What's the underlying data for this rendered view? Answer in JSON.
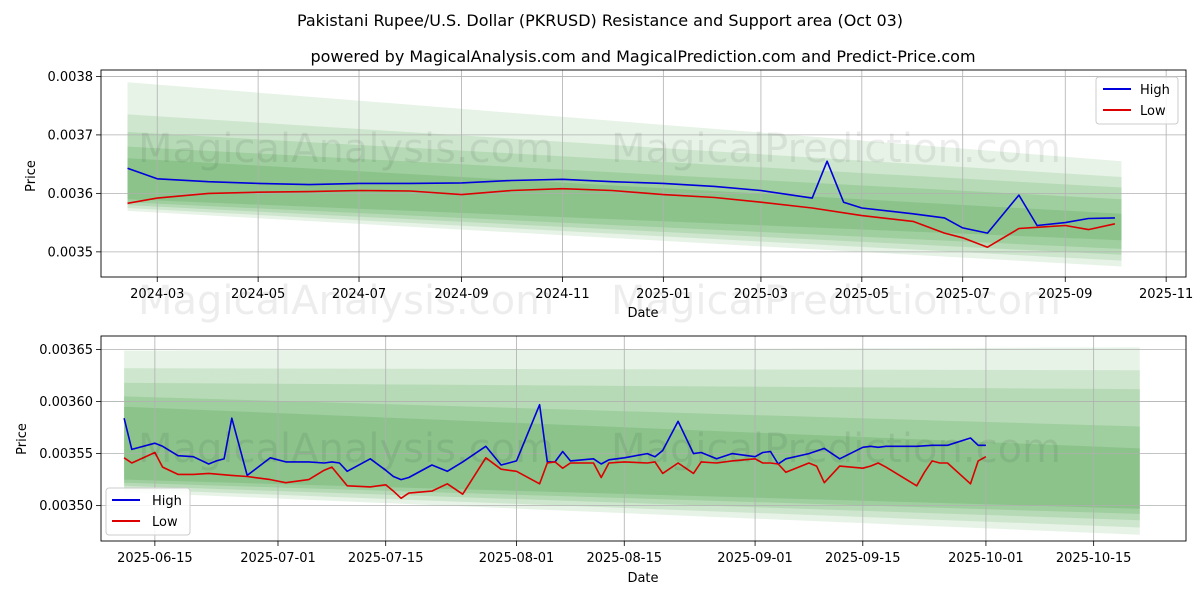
{
  "page": {
    "title": "Pakistani Rupee/U.S. Dollar (PKRUSD) Resistance and Support area (Oct 03)",
    "subtitle": "powered by MagicalAnalysis.com and MagicalPrediction.com and Predict-Price.com",
    "watermark_left": "MagicalAnalysis.com",
    "watermark_right": "MagicalPrediction.com"
  },
  "colors": {
    "high": "#0000dd",
    "low": "#dd0000",
    "band": "#3a9a3a",
    "grid": "#b0b0b0"
  },
  "chart_data": [
    {
      "type": "line",
      "id": "top",
      "xlabel": "Date",
      "ylabel": "Price",
      "xlim": [
        "2024-01-27",
        "2025-11-13"
      ],
      "ylim": [
        0.003457,
        0.003811
      ],
      "xticks": [
        "2024-03-01",
        "2024-05-01",
        "2024-07-01",
        "2024-09-01",
        "2024-11-01",
        "2025-01-01",
        "2025-03-01",
        "2025-05-01",
        "2025-07-01",
        "2025-09-01",
        "2025-11-01"
      ],
      "xtick_labels": [
        "2024-03",
        "2024-05",
        "2024-07",
        "2024-09",
        "2024-11",
        "2025-01",
        "2025-03",
        "2025-05",
        "2025-07",
        "2025-09",
        "2025-11"
      ],
      "yticks": [
        0.0035,
        0.0036,
        0.0037,
        0.0038
      ],
      "ytick_labels": [
        "0.0035",
        "0.0036",
        "0.0037",
        "0.0038"
      ],
      "legend": {
        "position": "top-right",
        "entries": [
          "High",
          "Low"
        ]
      },
      "bands": [
        {
          "x": [
            "2024-02-12",
            "2025-10-05"
          ],
          "upper": [
            0.00379,
            0.003655
          ],
          "lower": [
            0.00357,
            0.003475
          ]
        },
        {
          "x": [
            "2024-02-12",
            "2025-10-05"
          ],
          "upper": [
            0.003735,
            0.003628
          ],
          "lower": [
            0.003575,
            0.003485
          ]
        },
        {
          "x": [
            "2024-02-12",
            "2025-10-05"
          ],
          "upper": [
            0.003705,
            0.00361
          ],
          "lower": [
            0.00358,
            0.003495
          ]
        },
        {
          "x": [
            "2024-02-12",
            "2025-10-05"
          ],
          "upper": [
            0.00368,
            0.00359
          ],
          "lower": [
            0.003585,
            0.003505
          ]
        },
        {
          "x": [
            "2024-02-12",
            "2025-10-05"
          ],
          "upper": [
            0.00366,
            0.003565
          ],
          "lower": [
            0.00359,
            0.00352
          ]
        }
      ],
      "series": [
        {
          "name": "High",
          "x": [
            "2024-02-12",
            "2024-03-01",
            "2024-04-01",
            "2024-05-01",
            "2024-06-01",
            "2024-07-01",
            "2024-08-01",
            "2024-09-01",
            "2024-10-01",
            "2024-11-01",
            "2024-12-01",
            "2025-01-01",
            "2025-02-01",
            "2025-03-01",
            "2025-04-01",
            "2025-04-10",
            "2025-04-20",
            "2025-05-01",
            "2025-06-01",
            "2025-06-20",
            "2025-07-01",
            "2025-07-16",
            "2025-08-04",
            "2025-08-15",
            "2025-09-01",
            "2025-09-15",
            "2025-10-01"
          ],
          "values": [
            0.003643,
            0.003625,
            0.00362,
            0.003617,
            0.003615,
            0.003617,
            0.003617,
            0.003618,
            0.003622,
            0.003624,
            0.00362,
            0.003617,
            0.003612,
            0.003605,
            0.003592,
            0.003655,
            0.003585,
            0.003575,
            0.003565,
            0.003558,
            0.003541,
            0.003532,
            0.003597,
            0.003545,
            0.00355,
            0.003557,
            0.003558
          ]
        },
        {
          "name": "Low",
          "x": [
            "2024-02-12",
            "2024-03-01",
            "2024-04-01",
            "2024-05-01",
            "2024-06-01",
            "2024-07-01",
            "2024-08-01",
            "2024-09-01",
            "2024-10-01",
            "2024-11-01",
            "2024-12-01",
            "2025-01-01",
            "2025-02-01",
            "2025-03-01",
            "2025-04-01",
            "2025-05-01",
            "2025-06-01",
            "2025-06-20",
            "2025-07-01",
            "2025-07-16",
            "2025-08-04",
            "2025-08-15",
            "2025-09-01",
            "2025-09-15",
            "2025-10-01"
          ],
          "values": [
            0.003583,
            0.003592,
            0.0036,
            0.003602,
            0.003603,
            0.003605,
            0.003604,
            0.003598,
            0.003605,
            0.003608,
            0.003605,
            0.003598,
            0.003593,
            0.003585,
            0.003575,
            0.003562,
            0.003552,
            0.003532,
            0.003524,
            0.003508,
            0.00354,
            0.003542,
            0.003545,
            0.003538,
            0.003548
          ]
        }
      ]
    },
    {
      "type": "line",
      "id": "bottom",
      "xlabel": "Date",
      "ylabel": "Price",
      "xlim": [
        "2025-06-08",
        "2025-10-27"
      ],
      "ylim": [
        0.003466,
        0.003663
      ],
      "xticks": [
        "2025-06-15",
        "2025-07-01",
        "2025-07-15",
        "2025-08-01",
        "2025-08-15",
        "2025-09-01",
        "2025-09-15",
        "2025-10-01",
        "2025-10-15"
      ],
      "xtick_labels": [
        "2025-06-15",
        "2025-07-01",
        "2025-07-15",
        "2025-08-01",
        "2025-08-15",
        "2025-09-01",
        "2025-09-15",
        "2025-10-01",
        "2025-10-15"
      ],
      "yticks": [
        0.0035,
        0.00355,
        0.0036,
        0.00365
      ],
      "ytick_labels": [
        "0.00350",
        "0.00355",
        "0.00360",
        "0.00365"
      ],
      "legend": {
        "position": "bottom-left",
        "entries": [
          "High",
          "Low"
        ]
      },
      "bands": [
        {
          "x": [
            "2025-06-11",
            "2025-10-21"
          ],
          "upper": [
            0.003649,
            0.003652
          ],
          "lower": [
            0.003513,
            0.003472
          ]
        },
        {
          "x": [
            "2025-06-11",
            "2025-10-21"
          ],
          "upper": [
            0.003632,
            0.00363
          ],
          "lower": [
            0.003516,
            0.003479
          ]
        },
        {
          "x": [
            "2025-06-11",
            "2025-10-21"
          ],
          "upper": [
            0.003618,
            0.003612
          ],
          "lower": [
            0.003519,
            0.003486
          ]
        },
        {
          "x": [
            "2025-06-11",
            "2025-10-21"
          ],
          "upper": [
            0.003605,
            0.003576
          ],
          "lower": [
            0.003522,
            0.003492
          ]
        },
        {
          "x": [
            "2025-06-11",
            "2025-10-21"
          ],
          "upper": [
            0.003595,
            0.003555
          ],
          "lower": [
            0.003525,
            0.003497
          ]
        }
      ],
      "series": [
        {
          "name": "High",
          "x": [
            "2025-06-11",
            "2025-06-12",
            "2025-06-15",
            "2025-06-16",
            "2025-06-18",
            "2025-06-20",
            "2025-06-22",
            "2025-06-23",
            "2025-06-24",
            "2025-06-25",
            "2025-06-27",
            "2025-06-30",
            "2025-07-02",
            "2025-07-05",
            "2025-07-07",
            "2025-07-08",
            "2025-07-09",
            "2025-07-10",
            "2025-07-13",
            "2025-07-15",
            "2025-07-16",
            "2025-07-17",
            "2025-07-18",
            "2025-07-21",
            "2025-07-23",
            "2025-07-25",
            "2025-07-28",
            "2025-07-30",
            "2025-08-01",
            "2025-08-04",
            "2025-08-05",
            "2025-08-06",
            "2025-08-07",
            "2025-08-08",
            "2025-08-11",
            "2025-08-12",
            "2025-08-13",
            "2025-08-15",
            "2025-08-18",
            "2025-08-19",
            "2025-08-20",
            "2025-08-22",
            "2025-08-24",
            "2025-08-25",
            "2025-08-27",
            "2025-08-29",
            "2025-09-01",
            "2025-09-02",
            "2025-09-03",
            "2025-09-04",
            "2025-09-05",
            "2025-09-08",
            "2025-09-10",
            "2025-09-12",
            "2025-09-15",
            "2025-09-16",
            "2025-09-17",
            "2025-09-18",
            "2025-09-22",
            "2025-09-24",
            "2025-09-26",
            "2025-09-29",
            "2025-09-30",
            "2025-10-01"
          ],
          "values": [
            0.003584,
            0.003554,
            0.00356,
            0.003557,
            0.003548,
            0.003547,
            0.00354,
            0.003543,
            0.003545,
            0.003584,
            0.003529,
            0.003546,
            0.003542,
            0.003542,
            0.003541,
            0.003542,
            0.003541,
            0.003533,
            0.003545,
            0.003534,
            0.003528,
            0.003525,
            0.003527,
            0.003539,
            0.003533,
            0.003542,
            0.003557,
            0.003539,
            0.003543,
            0.003597,
            0.003542,
            0.003542,
            0.003552,
            0.003543,
            0.003545,
            0.00354,
            0.003544,
            0.003546,
            0.00355,
            0.003547,
            0.003553,
            0.003581,
            0.00355,
            0.003551,
            0.003545,
            0.00355,
            0.003547,
            0.003551,
            0.003552,
            0.00354,
            0.003545,
            0.00355,
            0.003555,
            0.003545,
            0.003556,
            0.003557,
            0.003556,
            0.003557,
            0.003557,
            0.003558,
            0.003558,
            0.003565,
            0.003558,
            0.003558
          ]
        },
        {
          "name": "Low",
          "x": [
            "2025-06-11",
            "2025-06-12",
            "2025-06-15",
            "2025-06-16",
            "2025-06-18",
            "2025-06-20",
            "2025-06-22",
            "2025-06-25",
            "2025-06-27",
            "2025-06-30",
            "2025-07-02",
            "2025-07-05",
            "2025-07-07",
            "2025-07-08",
            "2025-07-10",
            "2025-07-13",
            "2025-07-15",
            "2025-07-16",
            "2025-07-17",
            "2025-07-18",
            "2025-07-21",
            "2025-07-23",
            "2025-07-25",
            "2025-07-28",
            "2025-07-30",
            "2025-08-01",
            "2025-08-04",
            "2025-08-05",
            "2025-08-06",
            "2025-08-07",
            "2025-08-08",
            "2025-08-11",
            "2025-08-12",
            "2025-08-13",
            "2025-08-15",
            "2025-08-18",
            "2025-08-19",
            "2025-08-20",
            "2025-08-22",
            "2025-08-24",
            "2025-08-25",
            "2025-08-27",
            "2025-08-29",
            "2025-09-01",
            "2025-09-02",
            "2025-09-03",
            "2025-09-04",
            "2025-09-05",
            "2025-09-08",
            "2025-09-09",
            "2025-09-10",
            "2025-09-12",
            "2025-09-15",
            "2025-09-16",
            "2025-09-17",
            "2025-09-18",
            "2025-09-22",
            "2025-09-23",
            "2025-09-24",
            "2025-09-25",
            "2025-09-26",
            "2025-09-29",
            "2025-09-30",
            "2025-10-01"
          ],
          "values": [
            0.003546,
            0.003541,
            0.003551,
            0.003537,
            0.00353,
            0.00353,
            0.003531,
            0.003529,
            0.003528,
            0.003525,
            0.003522,
            0.003525,
            0.003534,
            0.003537,
            0.003519,
            0.003518,
            0.00352,
            0.003514,
            0.003507,
            0.003512,
            0.003514,
            0.003521,
            0.003511,
            0.003546,
            0.003535,
            0.003533,
            0.003521,
            0.003541,
            0.003542,
            0.003536,
            0.003541,
            0.003541,
            0.003527,
            0.003541,
            0.003542,
            0.003541,
            0.003542,
            0.003531,
            0.003541,
            0.003531,
            0.003542,
            0.003541,
            0.003543,
            0.003545,
            0.003541,
            0.003541,
            0.00354,
            0.003532,
            0.003541,
            0.003538,
            0.003522,
            0.003538,
            0.003536,
            0.003538,
            0.003541,
            0.003537,
            0.003519,
            0.003532,
            0.003543,
            0.003541,
            0.003541,
            0.003521,
            0.003543,
            0.003547
          ]
        }
      ]
    }
  ]
}
